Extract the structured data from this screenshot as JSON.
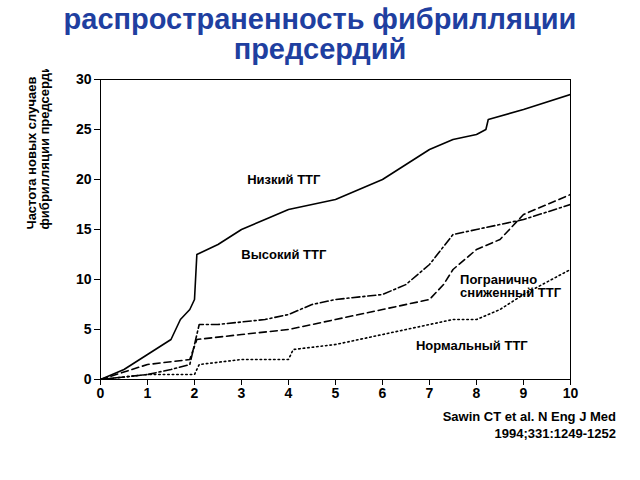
{
  "chart_data": {
    "type": "line",
    "title": "распространенность фибрилляции предсердий",
    "ylabel": "Частота новых случаев фибрилляции предсердий, %",
    "source": [
      "Sawin CT et al. N Eng J Med",
      "1994;331:1249-1252"
    ],
    "xlim": [
      0,
      10
    ],
    "xticks": [
      0,
      1,
      2,
      3,
      4,
      5,
      6,
      7,
      8,
      9,
      10
    ],
    "ylim": [
      0,
      30
    ],
    "yticks": [
      0,
      5,
      10,
      15,
      20,
      25,
      30
    ],
    "grid": false,
    "series": [
      {
        "name": "Низкий ТТГ",
        "color": "#000000",
        "line_style": "solid",
        "x": [
          0,
          0.5,
          1,
          1.5,
          1.7,
          1.9,
          2.0,
          2.05,
          2.5,
          3,
          3.5,
          4,
          5,
          5.5,
          6,
          6.5,
          7,
          7.5,
          8,
          8.2,
          8.25,
          9,
          10
        ],
        "values": [
          0,
          1,
          2.5,
          4,
          6,
          7,
          8,
          12.5,
          13.5,
          15,
          16,
          17,
          18,
          19,
          20,
          21.5,
          23,
          24,
          24.5,
          25,
          26,
          27,
          28.5
        ]
      },
      {
        "name": "Высокий ТТГ",
        "color": "#000000",
        "line_style": "dashdot",
        "x": [
          0,
          1,
          1.5,
          1.9,
          2.1,
          2.5,
          3.5,
          4,
          4.5,
          5,
          6,
          6.5,
          7,
          7.5,
          8,
          8.5,
          9,
          10
        ],
        "values": [
          0,
          0.5,
          1,
          1.5,
          5.5,
          5.5,
          6,
          6.5,
          7.5,
          8,
          8.5,
          9.5,
          11.5,
          14.5,
          15,
          15.5,
          16,
          17.5
        ]
      },
      {
        "name": "Погранично сниженный ТТГ",
        "color": "#000000",
        "line_style": "dashed",
        "x": [
          0,
          1,
          1.9,
          2.05,
          3,
          4,
          5,
          6,
          7,
          7.3,
          7.5,
          8,
          8.5,
          9,
          10
        ],
        "values": [
          0,
          1.5,
          2,
          4,
          4.5,
          5,
          6,
          7,
          8,
          9.5,
          11,
          13,
          14,
          16.5,
          18.5
        ]
      },
      {
        "name": "Нормальный ТТГ",
        "color": "#000000",
        "line_style": "dotted",
        "x": [
          0,
          1,
          2,
          2.1,
          3,
          4,
          4.1,
          5,
          6,
          7,
          7.5,
          8,
          8.5,
          9,
          10
        ],
        "values": [
          0,
          0.5,
          0.5,
          1.5,
          2,
          2,
          3,
          3.5,
          4.5,
          5.5,
          6,
          6,
          7,
          8.5,
          11
        ]
      }
    ]
  }
}
